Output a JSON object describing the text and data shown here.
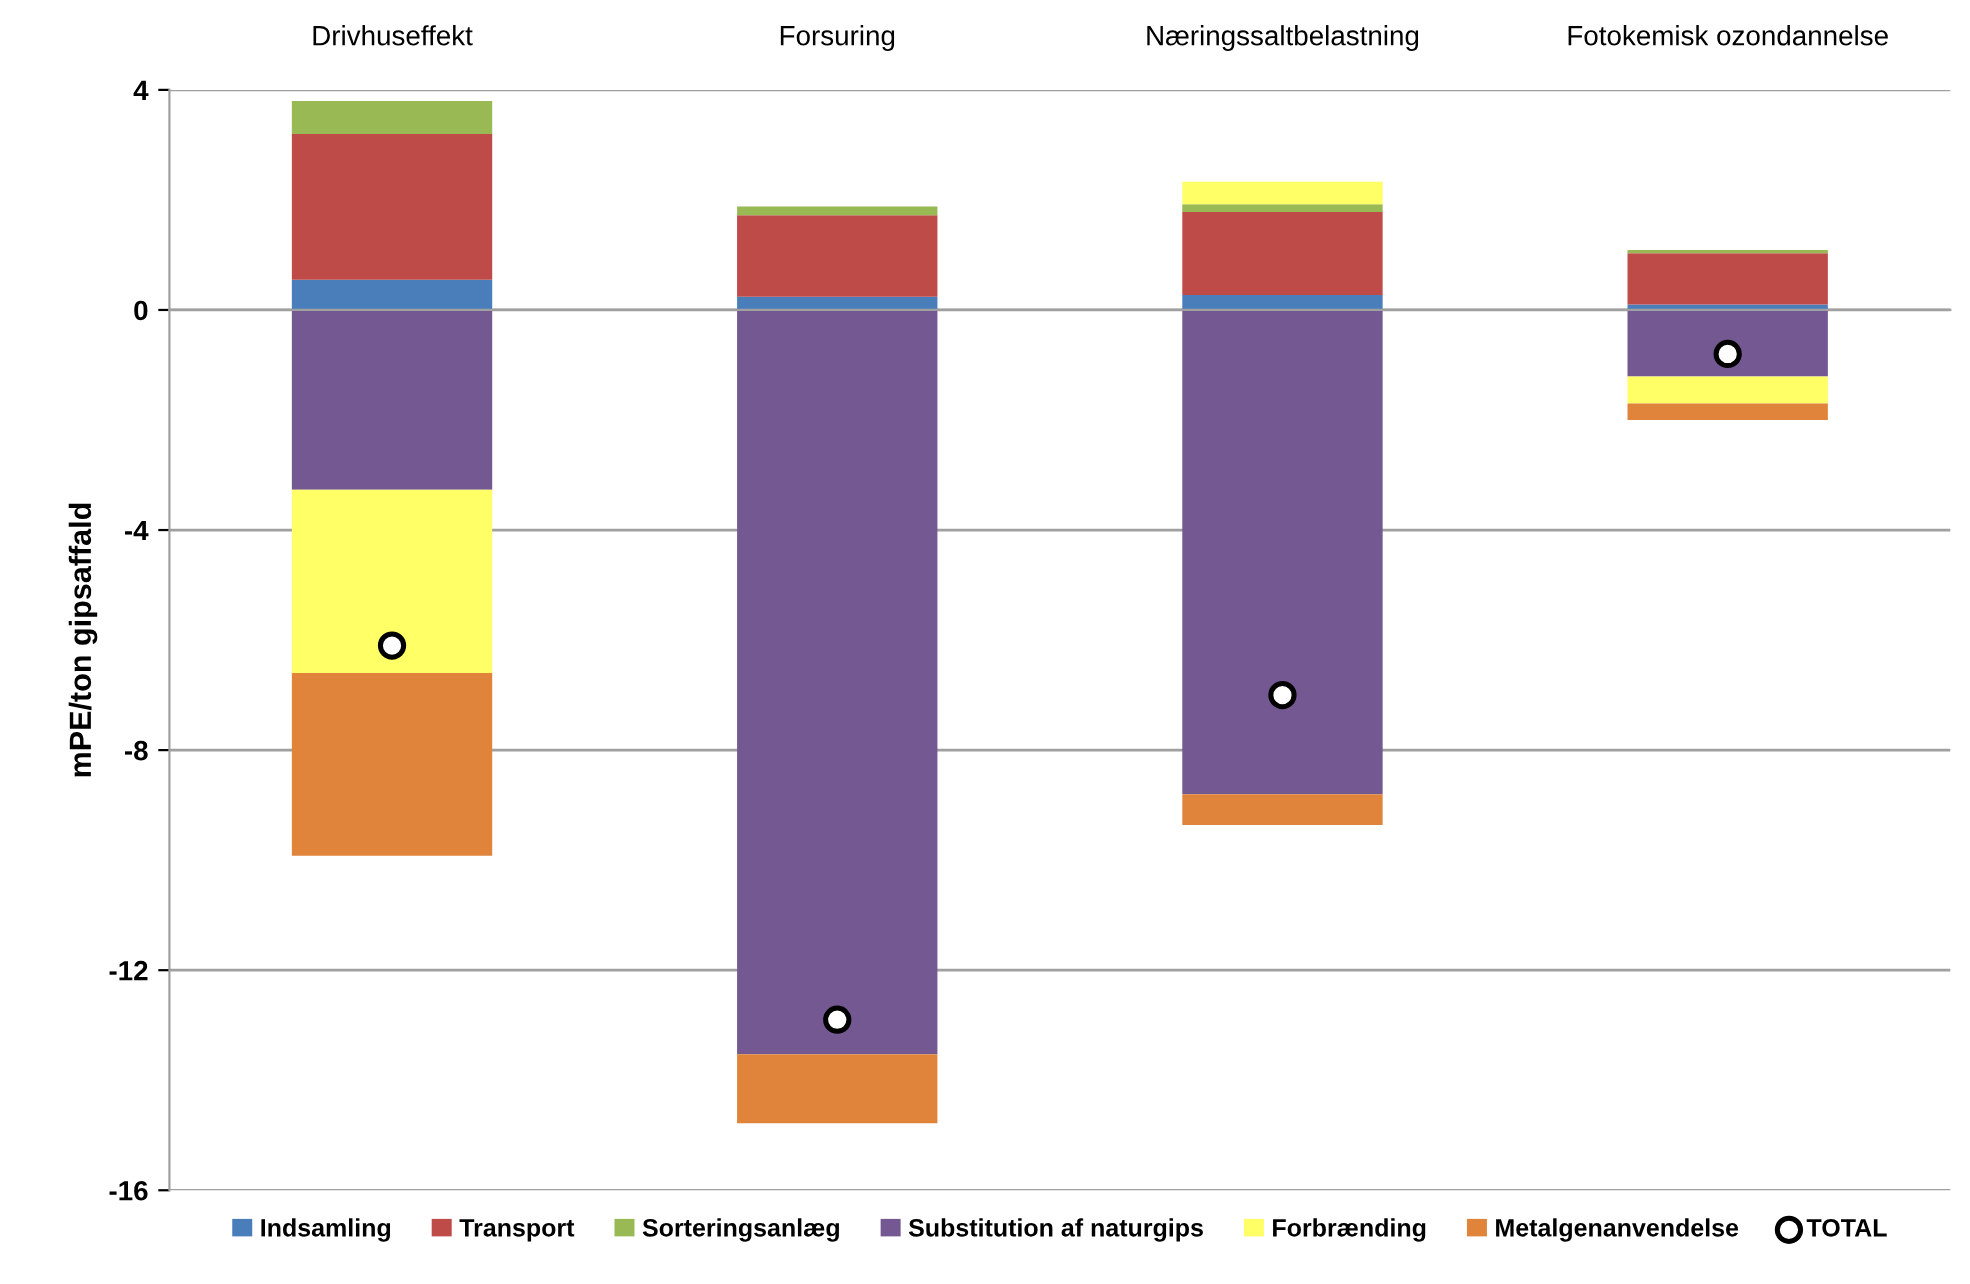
{
  "chart_data": {
    "type": "bar",
    "stacked": true,
    "ylabel": "mPE/ton gipsaffald",
    "categories": [
      "Drivhuseffekt",
      "Forsuring",
      "Næringssaltbelastning",
      "Fotokemisk ozondannelse"
    ],
    "series": [
      {
        "name": "Indsamling",
        "color": "#4a7ebb",
        "values": [
          0.55,
          0.24,
          0.27,
          0.1
        ]
      },
      {
        "name": "Transport",
        "color": "#be4b48",
        "values": [
          2.65,
          1.48,
          1.51,
          0.93
        ]
      },
      {
        "name": "Sorteringsanlæg",
        "color": "#98b954",
        "values": [
          0.6,
          0.16,
          0.14,
          0.06
        ]
      },
      {
        "name": "Substitution af naturgips",
        "color": "#735891",
        "values": [
          -3.27,
          -13.53,
          -8.8,
          -1.21
        ]
      },
      {
        "name": "Forbrænding",
        "color": "#ffff66",
        "values": [
          -3.33,
          0,
          0.41,
          -0.49
        ]
      },
      {
        "name": "Metalgenanvendelse",
        "color": "#e0843c",
        "values": [
          -3.32,
          -1.25,
          -0.56,
          -0.3
        ]
      },
      {
        "name": "TOTAL",
        "type": "scatter",
        "marker": "circle",
        "color": "#ffffff",
        "values": [
          -6.1,
          -12.9,
          -7.0,
          -0.8
        ]
      }
    ],
    "ylim": [
      -16,
      4
    ],
    "yticks": [
      -16,
      -12,
      -8,
      -4,
      0,
      4
    ],
    "grid": "y",
    "legend": "bottom"
  }
}
